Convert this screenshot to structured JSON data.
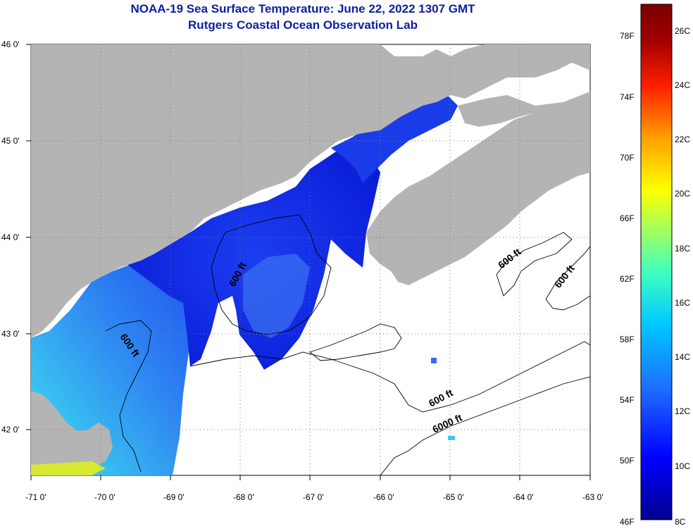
{
  "title": {
    "line1": "NOAA-19 Sea Surface Temperature:  June 22, 2022 1307 GMT",
    "line2": "Rutgers Coastal Ocean Observation Lab"
  },
  "map": {
    "lon_ticks": [
      "-71 0'",
      "-70 0'",
      "-69 0'",
      "-68 0'",
      "-67 0'",
      "-66 0'",
      "-65 0'",
      "-64 0'",
      "-63 0'"
    ],
    "lat_ticks": [
      "46 0'",
      "45 0'",
      "44 0'",
      "43 0'",
      "42 0'"
    ],
    "extent": {
      "lon": [
        -71,
        -63
      ],
      "lat": [
        41.5,
        46
      ]
    },
    "colors": {
      "land": "#b4b4b4",
      "water_no_data": "#ffffff",
      "graticule": "#888888"
    },
    "contour_labels": [
      "600 ft",
      "600 ft",
      "600 ft",
      "600 ft",
      "600 ft",
      "6000 ft"
    ]
  },
  "colorbar": {
    "fahrenheit_labels": [
      "78F",
      "74F",
      "70F",
      "66F",
      "62F",
      "58F",
      "54F",
      "50F",
      "46F"
    ],
    "celsius_labels": [
      "26C",
      "24C",
      "22C",
      "20C",
      "18C",
      "16C",
      "14C",
      "12C",
      "10C",
      "8C"
    ],
    "range_c": [
      8,
      27
    ],
    "colors": [
      "#00008f",
      "#0000ff",
      "#1e6bff",
      "#00c8ff",
      "#40ffc0",
      "#a0ff60",
      "#ffff00",
      "#ffa000",
      "#ff2000",
      "#a00000",
      "#7a0000"
    ]
  }
}
